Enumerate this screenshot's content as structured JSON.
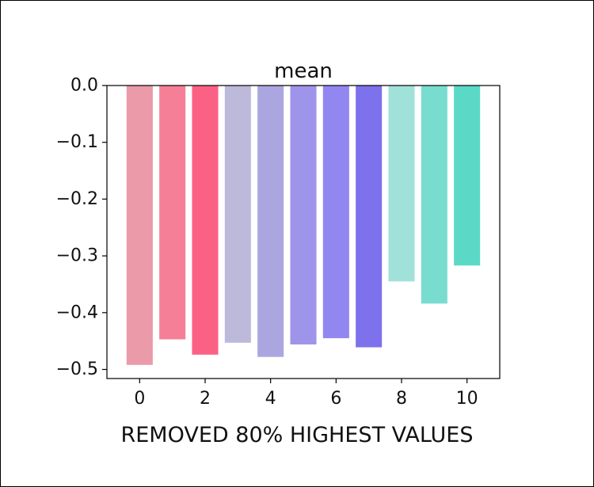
{
  "chart_data": {
    "type": "bar",
    "title": "mean",
    "xlabel": "REMOVED 80% HIGHEST VALUES",
    "ylabel": "",
    "categories": [
      0,
      1,
      2,
      3,
      4,
      5,
      6,
      7,
      8,
      9,
      10
    ],
    "values": [
      -0.492,
      -0.447,
      -0.474,
      -0.453,
      -0.478,
      -0.456,
      -0.445,
      -0.461,
      -0.345,
      -0.384,
      -0.317
    ],
    "colors": [
      "#ea9aa8",
      "#f57f97",
      "#fb6185",
      "#bdb9da",
      "#aca6e0",
      "#9e94ea",
      "#9287f0",
      "#7d71ec",
      "#a0e2d9",
      "#78ddcf",
      "#5ad9c6"
    ],
    "xlim": [
      -1,
      11
    ],
    "ylim": [
      -0.516,
      0
    ],
    "xticks": [
      0,
      2,
      4,
      6,
      8,
      10
    ],
    "xtick_labels": [
      "0",
      "2",
      "4",
      "6",
      "8",
      "10"
    ],
    "yticks": [
      0.0,
      -0.1,
      -0.2,
      -0.3,
      -0.4,
      -0.5
    ],
    "ytick_labels": [
      "0.0",
      "−0.1",
      "−0.2",
      "−0.3",
      "−0.4",
      "−0.5"
    ],
    "grid": false,
    "legend": "none"
  }
}
